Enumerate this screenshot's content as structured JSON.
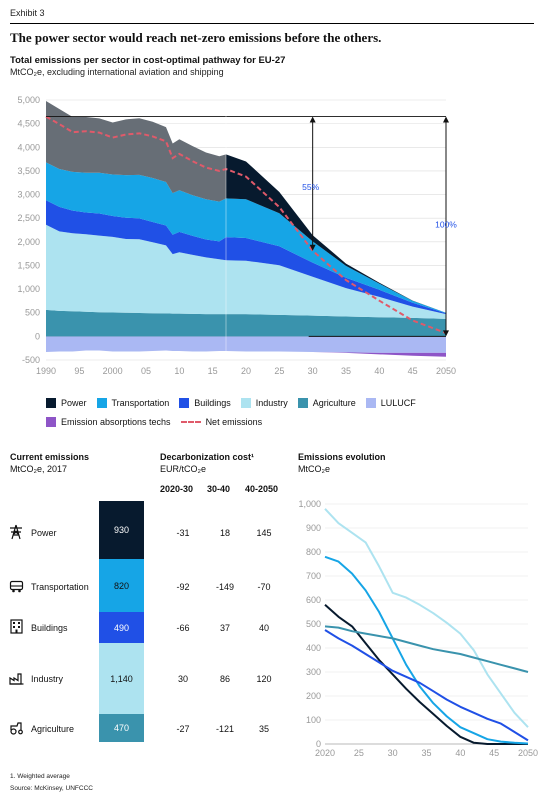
{
  "exhibit": "Exhibit 3",
  "headline": "The power sector would reach net-zero emissions before the others.",
  "top_chart_title": "Total emissions per sector in cost-optimal pathway for EU-27",
  "top_chart_subtitle": "MtCO₂e, excluding international aviation and shipping",
  "legend": {
    "power": "Power",
    "transportation": "Transportation",
    "buildings": "Buildings",
    "industry": "Industry",
    "agriculture": "Agriculture",
    "lulucf": "LULUCF",
    "absorption": "Emission absorptions techs",
    "net": "Net emissions"
  },
  "colors": {
    "power": "#071a2e",
    "history_dark": "#676e76",
    "transportation": "#16a5e6",
    "buildings": "#2050e6",
    "industry": "#ade3f0",
    "agriculture": "#3a93ad",
    "lulucf": "#aab8f3",
    "absorption": "#8e55c7",
    "net": "#e05a6a"
  },
  "annotations": {
    "a55": "55%",
    "a100": "100%"
  },
  "chart_data": [
    {
      "type": "area",
      "title": "Total emissions per sector in cost-optimal pathway for EU-27",
      "subtitle": "MtCO₂e, excluding international aviation and shipping",
      "x": [
        1990,
        1992,
        1994,
        1996,
        1998,
        2000,
        2002,
        2004,
        2006,
        2008,
        2009,
        2010,
        2012,
        2014,
        2016,
        2017,
        2020,
        2025,
        2030,
        2035,
        2040,
        2045,
        2050
      ],
      "x_tick_labels": [
        "1990",
        "95",
        "2000",
        "05",
        "10",
        "15",
        "20",
        "25",
        "30",
        "35",
        "40",
        "45",
        "2050"
      ],
      "x_ticks": [
        1990,
        1995,
        2000,
        2005,
        2010,
        2015,
        2020,
        2025,
        2030,
        2035,
        2040,
        2045,
        2050
      ],
      "ylim": [
        -500,
        5000
      ],
      "y_ticks": [
        -500,
        0,
        500,
        1000,
        1500,
        2000,
        2500,
        3000,
        3500,
        4000,
        4500,
        5000
      ],
      "y_tick_labels": [
        "-500",
        "0",
        "500",
        "1,000",
        "1,500",
        "2,000",
        "2,500",
        "3,000",
        "3,500",
        "4,000",
        "4,500",
        "5,000"
      ],
      "series": [
        {
          "name": "LULUCF",
          "values": [
            -330,
            -320,
            -320,
            -300,
            -300,
            -320,
            -320,
            -320,
            -310,
            -300,
            -310,
            -310,
            -320,
            -320,
            -310,
            -310,
            -320,
            -320,
            -330,
            -340,
            -350,
            -350,
            -350
          ]
        },
        {
          "name": "Emission absorptions techs",
          "values": [
            0,
            0,
            0,
            0,
            0,
            0,
            0,
            0,
            0,
            0,
            0,
            0,
            0,
            0,
            0,
            0,
            0,
            0,
            0,
            -10,
            -30,
            -60,
            -80
          ]
        },
        {
          "name": "Agriculture",
          "values": [
            560,
            540,
            530,
            520,
            510,
            505,
            500,
            495,
            490,
            485,
            480,
            480,
            475,
            470,
            470,
            470,
            470,
            455,
            440,
            420,
            405,
            390,
            370
          ]
        },
        {
          "name": "Industry",
          "values": [
            1800,
            1680,
            1650,
            1640,
            1620,
            1600,
            1560,
            1560,
            1500,
            1440,
            1260,
            1300,
            1250,
            1200,
            1160,
            1140,
            1130,
            1050,
            820,
            600,
            430,
            240,
            100
          ]
        },
        {
          "name": "Buildings",
          "values": [
            520,
            520,
            480,
            460,
            470,
            440,
            450,
            440,
            430,
            420,
            410,
            430,
            400,
            380,
            380,
            490,
            480,
            400,
            300,
            220,
            150,
            80,
            20
          ]
        },
        {
          "name": "Transportation",
          "values": [
            800,
            800,
            820,
            840,
            860,
            880,
            900,
            920,
            930,
            920,
            880,
            880,
            860,
            850,
            840,
            820,
            820,
            700,
            450,
            250,
            130,
            40,
            10
          ]
        },
        {
          "name": "Power",
          "values": [
            1300,
            1270,
            1160,
            1180,
            1150,
            1100,
            1180,
            1200,
            1190,
            1160,
            1050,
            1080,
            1040,
            990,
            960,
            930,
            800,
            450,
            130,
            50,
            20,
            5,
            0
          ]
        },
        {
          "name": "Net emissions",
          "values": [
            4650,
            4490,
            4320,
            4340,
            4310,
            4205,
            4270,
            4295,
            4230,
            4125,
            3770,
            3860,
            3705,
            3570,
            3500,
            3540,
            3380,
            2735,
            1810,
            1190,
            755,
            335,
            70
          ]
        }
      ],
      "annotations": [
        "55%",
        "100%"
      ]
    },
    {
      "type": "table",
      "title": "Current emissions",
      "subtitle": "MtCO₂e, 2017",
      "rows": [
        {
          "label": "Power",
          "value": "930"
        },
        {
          "label": "Transportation",
          "value": "820"
        },
        {
          "label": "Buildings",
          "value": "490"
        },
        {
          "label": "Industry",
          "value": "1,140"
        },
        {
          "label": "Agriculture",
          "value": "470"
        }
      ]
    },
    {
      "type": "table",
      "title": "Decarbonization cost¹",
      "subtitle": "EUR/tCO₂e",
      "columns": [
        "2020-30",
        "30-40",
        "40-2050"
      ],
      "rows": [
        [
          "-31",
          "18",
          "145"
        ],
        [
          "-92",
          "-149",
          "-70"
        ],
        [
          "-66",
          "37",
          "40"
        ],
        [
          "30",
          "86",
          "120"
        ],
        [
          "-27",
          "-121",
          "35"
        ]
      ]
    },
    {
      "type": "line",
      "title": "Emissions evolution",
      "subtitle": "MtCO₂e",
      "x": [
        2020,
        2022,
        2024,
        2026,
        2028,
        2030,
        2032,
        2034,
        2036,
        2038,
        2040,
        2042,
        2044,
        2046,
        2048,
        2050
      ],
      "x_tick_labels": [
        "2020",
        "25",
        "30",
        "35",
        "40",
        "45",
        "2050"
      ],
      "x_ticks": [
        2020,
        2025,
        2030,
        2035,
        2040,
        2045,
        2050
      ],
      "ylim": [
        0,
        1000
      ],
      "y_ticks": [
        0,
        100,
        200,
        300,
        400,
        500,
        600,
        700,
        800,
        900,
        1000
      ],
      "y_tick_labels": [
        "0",
        "100",
        "200",
        "300",
        "400",
        "500",
        "600",
        "700",
        "800",
        "900",
        "1,000"
      ],
      "series": [
        {
          "name": "Power",
          "values": [
            580,
            530,
            490,
            420,
            350,
            290,
            230,
            175,
            125,
            75,
            30,
            5,
            0,
            0,
            0,
            0
          ]
        },
        {
          "name": "Transportation",
          "values": [
            780,
            760,
            710,
            640,
            550,
            440,
            330,
            240,
            170,
            115,
            70,
            45,
            20,
            10,
            5,
            2
          ]
        },
        {
          "name": "Buildings",
          "values": [
            475,
            440,
            410,
            375,
            340,
            305,
            280,
            255,
            220,
            185,
            155,
            130,
            105,
            85,
            50,
            15
          ]
        },
        {
          "name": "Industry",
          "values": [
            980,
            920,
            880,
            840,
            740,
            630,
            610,
            580,
            545,
            505,
            460,
            390,
            290,
            210,
            130,
            70
          ]
        },
        {
          "name": "Agriculture",
          "values": [
            490,
            485,
            470,
            460,
            450,
            440,
            425,
            410,
            395,
            385,
            375,
            360,
            345,
            330,
            315,
            300
          ]
        }
      ]
    }
  ],
  "current": {
    "title": "Current emissions",
    "subtitle": "MtCO₂e, 2017",
    "rows": [
      {
        "label": "Power",
        "value": "930",
        "icon": "power-pylon-icon"
      },
      {
        "label": "Transportation",
        "value": "820",
        "icon": "car-icon"
      },
      {
        "label": "Buildings",
        "value": "490",
        "icon": "building-icon"
      },
      {
        "label": "Industry",
        "value": "1,140",
        "icon": "factory-icon"
      },
      {
        "label": "Agriculture",
        "value": "470",
        "icon": "tractor-icon"
      }
    ]
  },
  "cost": {
    "title": "Decarbonization cost¹",
    "subtitle": "EUR/tCO₂e",
    "columns": [
      "2020-30",
      "30-40",
      "40-2050"
    ],
    "rows": [
      [
        "-31",
        "18",
        "145"
      ],
      [
        "-92",
        "-149",
        "-70"
      ],
      [
        "-66",
        "37",
        "40"
      ],
      [
        "30",
        "86",
        "120"
      ],
      [
        "-27",
        "-121",
        "35"
      ]
    ]
  },
  "evolution": {
    "title": "Emissions evolution",
    "subtitle": "MtCO₂e"
  },
  "footnotes": {
    "note1": "1. Weighted average",
    "source": "Source: McKinsey, UNFCCC"
  }
}
